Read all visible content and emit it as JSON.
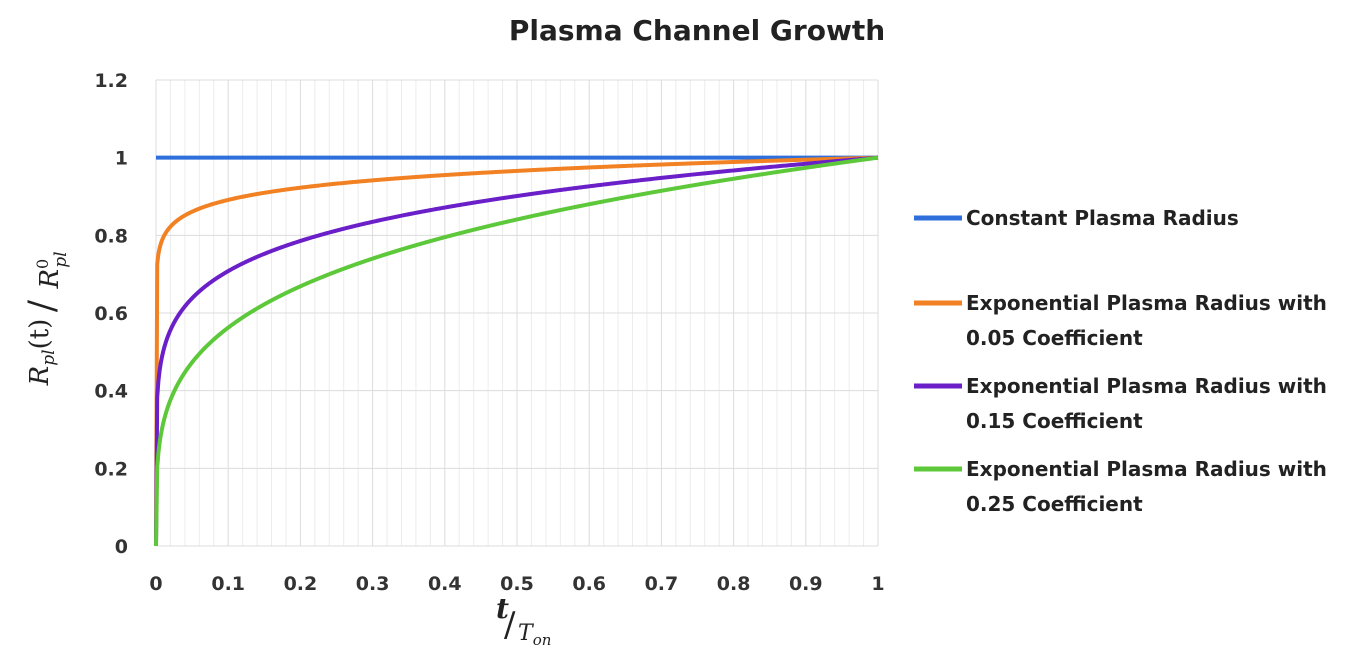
{
  "chart_data": {
    "type": "line",
    "title": "Plasma Channel Growth",
    "xlabel": {
      "main": "t",
      "sub": "T",
      "sub_index": "on"
    },
    "ylabel": {
      "num_main": "R",
      "num_index": "pl",
      "num_arg": "(t)",
      "den_main": "R",
      "den_index": "pl",
      "den_sup": "0"
    },
    "xlim": [
      0,
      1
    ],
    "ylim": [
      0,
      1.2
    ],
    "xticks": [
      "0",
      "0.1",
      "0.2",
      "0.3",
      "0.4",
      "0.5",
      "0.6",
      "0.7",
      "0.8",
      "0.9",
      "1"
    ],
    "yticks": [
      "0",
      "0.2",
      "0.4",
      "0.6",
      "0.8",
      "1",
      "1.2"
    ],
    "grid": true,
    "legend_position": "right",
    "series": [
      {
        "name": "Constant Plasma Radius",
        "legend_lines": [
          "Constant Plasma Radius"
        ],
        "color": "#2E6FDB",
        "model": "constant",
        "coefficient": 0
      },
      {
        "name": "Exponential Plasma Radius with 0.05 Coefficient",
        "legend_lines": [
          "Exponential Plasma Radius with",
          "0.05 Coefficient"
        ],
        "color": "#F28123",
        "model": "power",
        "coefficient": 0.05
      },
      {
        "name": "Exponential Plasma Radius with 0.15 Coefficient",
        "legend_lines": [
          "Exponential Plasma Radius with",
          "0.15 Coefficient"
        ],
        "color": "#6A1FC9",
        "model": "power",
        "coefficient": 0.15
      },
      {
        "name": "Exponential Plasma Radius with 0.25 Coefficient",
        "legend_lines": [
          "Exponential Plasma Radius with",
          "0.25 Coefficient"
        ],
        "color": "#5DC83A",
        "model": "power",
        "coefficient": 0.25
      }
    ]
  }
}
